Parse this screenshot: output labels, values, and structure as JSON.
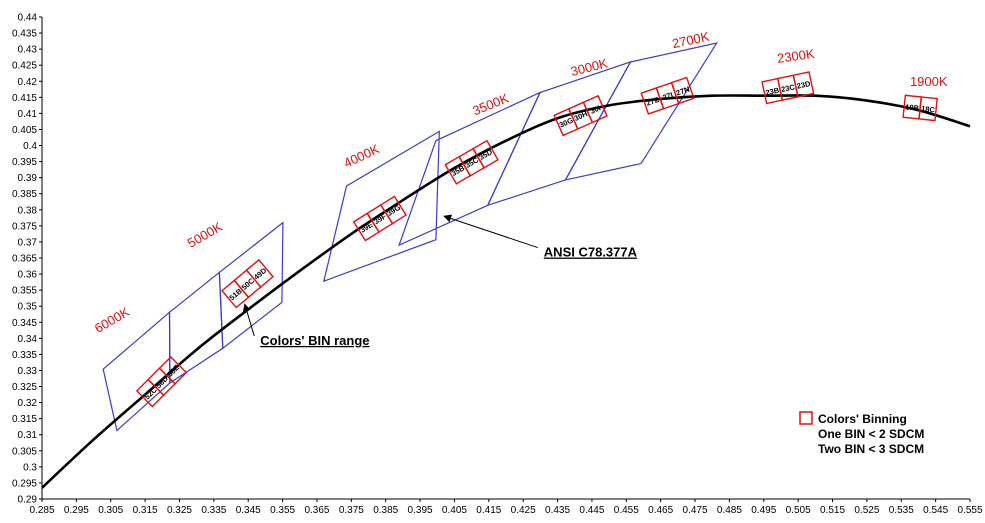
{
  "chart_data": {
    "type": "scatter",
    "title": "",
    "xlabel": "",
    "ylabel": "",
    "xlim": [
      0.285,
      0.555
    ],
    "ylim": [
      0.29,
      0.44
    ],
    "grid": false,
    "x_ticks": [
      "0.285",
      "0.295",
      "0.305",
      "0.315",
      "0.325",
      "0.335",
      "0.345",
      "0.355",
      "0.365",
      "0.375",
      "0.385",
      "0.395",
      "0.405",
      "0.415",
      "0.425",
      "0.435",
      "0.445",
      "0.455",
      "0.465",
      "0.475",
      "0.485",
      "0.495",
      "0.505",
      "0.515",
      "0.525",
      "0.535",
      "0.545",
      "0.555"
    ],
    "y_ticks": [
      "0.29",
      "0.295",
      "0.3",
      "0.305",
      "0.31",
      "0.315",
      "0.32",
      "0.325",
      "0.33",
      "0.335",
      "0.34",
      "0.345",
      "0.35",
      "0.355",
      "0.36",
      "0.365",
      "0.37",
      "0.375",
      "0.38",
      "0.385",
      "0.39",
      "0.395",
      "0.4",
      "0.405",
      "0.41",
      "0.415",
      "0.42",
      "0.425",
      "0.43",
      "0.435",
      "0.44"
    ],
    "colors": {
      "locus": "#000000",
      "bin_range": "#3a3ad0",
      "binning": "#e01010",
      "cct_label": "#e01010"
    },
    "planckian_locus": {
      "x": [
        0.285,
        0.3,
        0.315,
        0.33,
        0.345,
        0.36,
        0.375,
        0.39,
        0.405,
        0.42,
        0.435,
        0.45,
        0.465,
        0.48,
        0.495,
        0.51,
        0.525,
        0.54,
        0.555
      ],
      "y": [
        0.2935,
        0.3085,
        0.3225,
        0.3365,
        0.349,
        0.361,
        0.3725,
        0.383,
        0.393,
        0.4015,
        0.4085,
        0.4125,
        0.4145,
        0.4155,
        0.4155,
        0.4155,
        0.414,
        0.411,
        0.406
      ]
    },
    "ansi_quadrangles": [
      {
        "x": [
          0.3028,
          0.3221,
          0.3222,
          0.3068
        ],
        "y": [
          0.3304,
          0.3481,
          0.3261,
          0.3113
        ]
      },
      {
        "x": [
          0.3221,
          0.3366,
          0.3376,
          0.3222
        ],
        "y": [
          0.3481,
          0.3605,
          0.3369,
          0.3261
        ]
      },
      {
        "x": [
          0.3366,
          0.3551,
          0.3548,
          0.3376
        ],
        "y": [
          0.3605,
          0.376,
          0.3512,
          0.3369
        ]
      },
      {
        "x": [
          0.3736,
          0.4006,
          0.3996,
          0.367
        ],
        "y": [
          0.3874,
          0.4044,
          0.3707,
          0.3578
        ]
      },
      {
        "x": [
          0.3996,
          0.4299,
          0.4147,
          0.3889
        ],
        "y": [
          0.4015,
          0.4165,
          0.3814,
          0.369
        ]
      },
      {
        "x": [
          0.4299,
          0.4562,
          0.4373,
          0.4147
        ],
        "y": [
          0.4165,
          0.426,
          0.3893,
          0.3814
        ]
      },
      {
        "x": [
          0.4562,
          0.4813,
          0.4593,
          0.4373
        ],
        "y": [
          0.426,
          0.4319,
          0.3944,
          0.3893
        ]
      }
    ],
    "cct_labels": [
      {
        "text": "6000K",
        "x": 0.306,
        "y": 0.3445,
        "rotate": -30
      },
      {
        "text": "5000K",
        "x": 0.333,
        "y": 0.371,
        "rotate": -30
      },
      {
        "text": "4000K",
        "x": 0.3785,
        "y": 0.3955,
        "rotate": -25
      },
      {
        "text": "3500K",
        "x": 0.416,
        "y": 0.4115,
        "rotate": -22
      },
      {
        "text": "3000K",
        "x": 0.4445,
        "y": 0.423,
        "rotate": -14
      },
      {
        "text": "2700K",
        "x": 0.474,
        "y": 0.4315,
        "rotate": -12
      },
      {
        "text": "2300K",
        "x": 0.5045,
        "y": 0.4265,
        "rotate": -8
      },
      {
        "text": "1900K",
        "x": 0.543,
        "y": 0.4185,
        "rotate": 0
      }
    ],
    "binning_groups": [
      {
        "cx": 0.3198,
        "cy": 0.3265,
        "rotate": -45,
        "bins": [
          "52C",
          "56D",
          "58E"
        ]
      },
      {
        "cx": 0.3448,
        "cy": 0.357,
        "rotate": -40,
        "bins": [
          "51B",
          "50C",
          "49D"
        ]
      },
      {
        "cx": 0.3833,
        "cy": 0.3773,
        "rotate": -32,
        "bins": [
          "39E",
          "39F",
          "39G"
        ]
      },
      {
        "cx": 0.41,
        "cy": 0.3948,
        "rotate": -30,
        "bins": [
          "35B",
          "35C",
          "35D"
        ]
      },
      {
        "cx": 0.4417,
        "cy": 0.4093,
        "rotate": -24,
        "bins": [
          "30G",
          "30H",
          "30I"
        ]
      },
      {
        "cx": 0.467,
        "cy": 0.4155,
        "rotate": -19,
        "bins": [
          "27Z",
          "27I",
          "27N"
        ]
      },
      {
        "cx": 0.502,
        "cy": 0.418,
        "rotate": -12,
        "bins": [
          "23B",
          "23C",
          "23D"
        ]
      },
      {
        "cx": 0.5405,
        "cy": 0.4117,
        "rotate": 6,
        "bins": [
          "19B",
          "18C"
        ]
      }
    ],
    "annotations": [
      {
        "text": "ANSI C78.377A",
        "text_x": 0.431,
        "text_y": 0.367,
        "arrow_x": 0.402,
        "arrow_y": 0.378
      },
      {
        "text": "Colors' BIN range",
        "text_x": 0.3485,
        "text_y": 0.3395,
        "arrow_x": 0.344,
        "arrow_y": 0.3506
      }
    ],
    "legend": {
      "position": "bottom-right",
      "title": "Colors' Binning",
      "lines": [
        "One BIN < 2 SDCM",
        "Two BIN < 3 SDCM"
      ]
    }
  }
}
